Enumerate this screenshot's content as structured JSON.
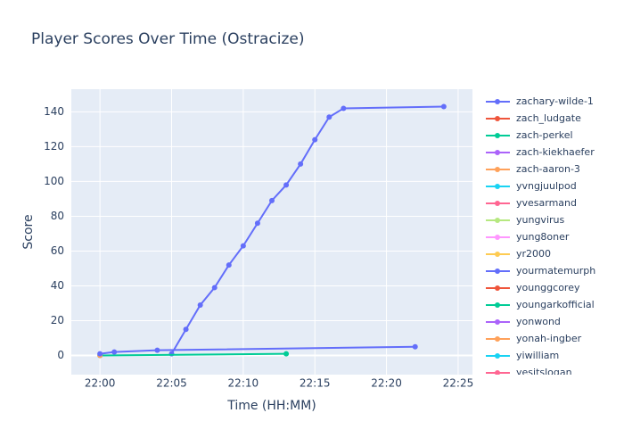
{
  "chart_data": {
    "type": "line",
    "title": "Player Scores Over Time (Ostracize)",
    "x_label": "Time (HH:MM)",
    "y_label": "Score",
    "xlim": [
      "21:58",
      "22:26"
    ],
    "xticks": [
      "22:00",
      "22:05",
      "22:10",
      "22:15",
      "22:20",
      "22:25"
    ],
    "ylim": [
      -11,
      153
    ],
    "yticks": [
      0,
      20,
      40,
      60,
      80,
      100,
      120,
      140
    ],
    "grid": true,
    "legend": "right",
    "series": [
      {
        "name": "zachary-wilde-1",
        "color": "#636efa",
        "x": [
          "22:05",
          "22:06",
          "22:07",
          "22:08",
          "22:09",
          "22:10",
          "22:11",
          "22:12",
          "22:13",
          "22:14",
          "22:15",
          "22:16",
          "22:17",
          "22:24"
        ],
        "values": [
          1,
          15,
          29,
          39,
          52,
          63,
          76,
          89,
          98,
          110,
          124,
          137,
          142,
          143
        ]
      },
      {
        "name": "zach_ludgate",
        "color": "#EF553B",
        "x": [],
        "values": []
      },
      {
        "name": "zach-perkel",
        "color": "#00cc96",
        "x": [
          "22:00",
          "22:13"
        ],
        "values": [
          0,
          1
        ]
      },
      {
        "name": "zach-kiekhaefer",
        "color": "#ab63fa",
        "x": [],
        "values": []
      },
      {
        "name": "zach-aaron-3",
        "color": "#FFA15A",
        "x": [
          "22:00"
        ],
        "values": [
          0
        ]
      },
      {
        "name": "yvngjuulpod",
        "color": "#19d3f3",
        "x": [],
        "values": []
      },
      {
        "name": "yvesarmand",
        "color": "#FF6692",
        "x": [],
        "values": []
      },
      {
        "name": "yungvirus",
        "color": "#B6E880",
        "x": [],
        "values": []
      },
      {
        "name": "yung8oner",
        "color": "#FF97FF",
        "x": [],
        "values": []
      },
      {
        "name": "yr2000",
        "color": "#FECB52",
        "x": [],
        "values": []
      },
      {
        "name": "yourmatemurph",
        "color": "#636efa",
        "x": [
          "22:00",
          "22:01",
          "22:04",
          "22:22"
        ],
        "values": [
          1,
          2,
          3,
          5
        ]
      },
      {
        "name": "younggcorey",
        "color": "#EF553B",
        "x": [],
        "values": []
      },
      {
        "name": "youngarkofficial",
        "color": "#00cc96",
        "x": [],
        "values": []
      },
      {
        "name": "yonwond",
        "color": "#ab63fa",
        "x": [],
        "values": []
      },
      {
        "name": "yonah-ingber",
        "color": "#FFA15A",
        "x": [],
        "values": []
      },
      {
        "name": "yiwilliam",
        "color": "#19d3f3",
        "x": [],
        "values": []
      },
      {
        "name": "yesitslogan",
        "color": "#FF6692",
        "x": [],
        "values": []
      }
    ]
  }
}
